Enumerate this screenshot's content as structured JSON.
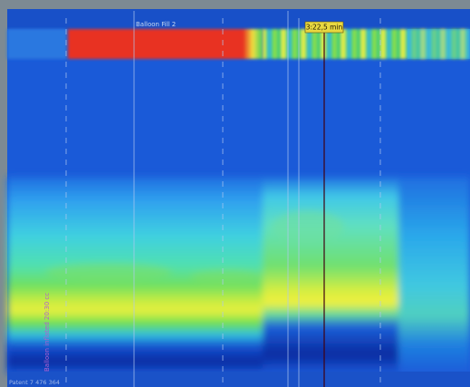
{
  "header": {
    "label": "Balloon Fill 2",
    "time": "3:22,5 min"
  },
  "side_label": "Balloon inflated 20:30 cc",
  "footer": "Patent 7 476 364"
}
